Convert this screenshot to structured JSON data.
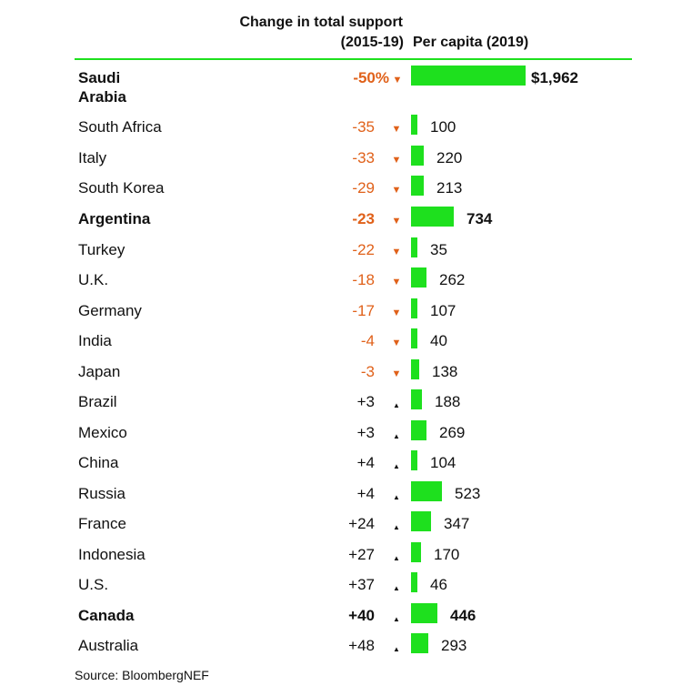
{
  "header": {
    "change_line1": "Change in total support",
    "change_line2": "(2015-19)",
    "per_capita": "Per capita (2019)"
  },
  "source": "Source: BloombergNEF",
  "colors": {
    "bar": "#1ee01e",
    "negative": "#e0611a",
    "positive": "#111111",
    "rule": "#1ee01e"
  },
  "chart_data": {
    "type": "table",
    "columns": [
      "Change in total support (2015-19)",
      "Per capita (2019)"
    ],
    "rows": [
      {
        "country": "Saudi\nArabia",
        "change": "-50%",
        "change_value": -50,
        "direction": "down",
        "per_capita": "$1,962",
        "per_capita_value": 1962,
        "bold": true
      },
      {
        "country": "South Africa",
        "change": "-35",
        "change_value": -35,
        "direction": "down",
        "per_capita": "100",
        "per_capita_value": 100,
        "bold": false
      },
      {
        "country": "Italy",
        "change": "-33",
        "change_value": -33,
        "direction": "down",
        "per_capita": "220",
        "per_capita_value": 220,
        "bold": false
      },
      {
        "country": "South Korea",
        "change": "-29",
        "change_value": -29,
        "direction": "down",
        "per_capita": "213",
        "per_capita_value": 213,
        "bold": false
      },
      {
        "country": "Argentina",
        "change": "-23",
        "change_value": -23,
        "direction": "down",
        "per_capita": "734",
        "per_capita_value": 734,
        "bold": true
      },
      {
        "country": "Turkey",
        "change": "-22",
        "change_value": -22,
        "direction": "down",
        "per_capita": "35",
        "per_capita_value": 35,
        "bold": false
      },
      {
        "country": "U.K.",
        "change": "-18",
        "change_value": -18,
        "direction": "down",
        "per_capita": "262",
        "per_capita_value": 262,
        "bold": false
      },
      {
        "country": "Germany",
        "change": "-17",
        "change_value": -17,
        "direction": "down",
        "per_capita": "107",
        "per_capita_value": 107,
        "bold": false
      },
      {
        "country": "India",
        "change": "-4",
        "change_value": -4,
        "direction": "down",
        "per_capita": "40",
        "per_capita_value": 40,
        "bold": false
      },
      {
        "country": "Japan",
        "change": "-3",
        "change_value": -3,
        "direction": "down",
        "per_capita": "138",
        "per_capita_value": 138,
        "bold": false
      },
      {
        "country": "Brazil",
        "change": "+3",
        "change_value": 3,
        "direction": "up",
        "per_capita": "188",
        "per_capita_value": 188,
        "bold": false
      },
      {
        "country": "Mexico",
        "change": "+3",
        "change_value": 3,
        "direction": "up",
        "per_capita": "269",
        "per_capita_value": 269,
        "bold": false
      },
      {
        "country": "China",
        "change": "+4",
        "change_value": 4,
        "direction": "up",
        "per_capita": "104",
        "per_capita_value": 104,
        "bold": false
      },
      {
        "country": "Russia",
        "change": "+4",
        "change_value": 4,
        "direction": "up",
        "per_capita": "523",
        "per_capita_value": 523,
        "bold": false
      },
      {
        "country": "France",
        "change": "+24",
        "change_value": 24,
        "direction": "up",
        "per_capita": "347",
        "per_capita_value": 347,
        "bold": false
      },
      {
        "country": "Indonesia",
        "change": "+27",
        "change_value": 27,
        "direction": "up",
        "per_capita": "170",
        "per_capita_value": 170,
        "bold": false
      },
      {
        "country": "U.S.",
        "change": "+37",
        "change_value": 37,
        "direction": "up",
        "per_capita": "46",
        "per_capita_value": 46,
        "bold": false
      },
      {
        "country": "Canada",
        "change": "+40",
        "change_value": 40,
        "direction": "up",
        "per_capita": "446",
        "per_capita_value": 446,
        "bold": true
      },
      {
        "country": "Australia",
        "change": "+48",
        "change_value": 48,
        "direction": "up",
        "per_capita": "293",
        "per_capita_value": 293,
        "bold": false
      }
    ]
  }
}
